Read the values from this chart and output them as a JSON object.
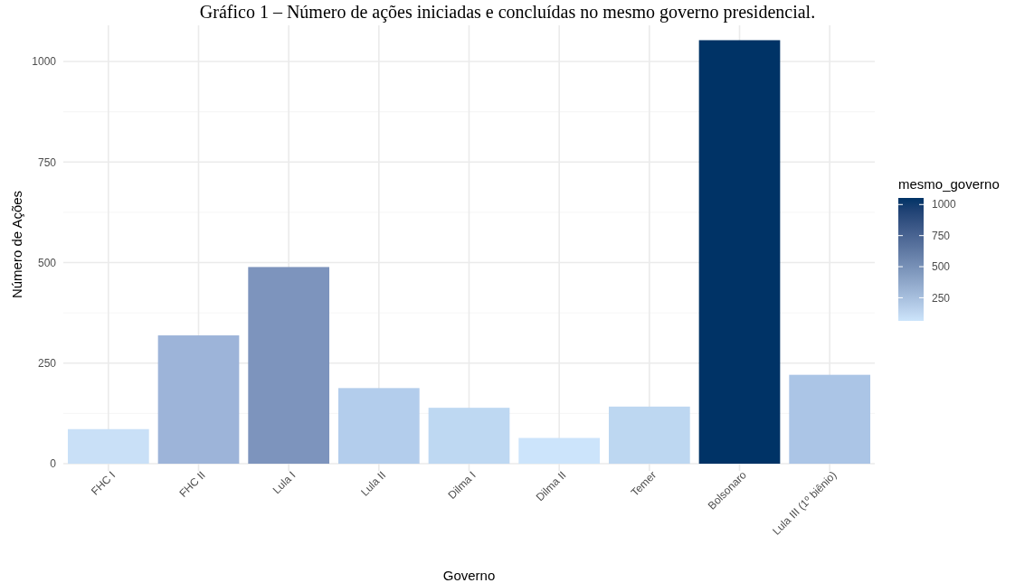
{
  "chart_data": {
    "type": "bar",
    "title": "Gráfico 1 – Número de ações iniciadas e concluídas no mesmo governo presidencial.",
    "xlabel": "Governo",
    "ylabel": "Número de Ações",
    "clabel": "mesmo_governo",
    "categories": [
      "FHC I",
      "FHC II",
      "Lula I",
      "Lula II",
      "Dilma I",
      "Dilma II",
      "Temer",
      "Bolsonaro",
      "Lula III (1º biênio)"
    ],
    "values": [
      86,
      319,
      489,
      188,
      139,
      64,
      142,
      1053,
      221
    ],
    "colors": [
      "#c9e0f7",
      "#9db4d9",
      "#7d94bd",
      "#b3cdec",
      "#bed8f2",
      "#cce4fb",
      "#bdd7f1",
      "#003366",
      "#abc5e6"
    ],
    "ylim": [
      0,
      1090
    ],
    "yticks": [
      0,
      250,
      500,
      750,
      1000
    ],
    "clim": [
      64,
      1053
    ],
    "cticks": [
      250,
      500,
      750,
      1000
    ],
    "grid": true
  }
}
